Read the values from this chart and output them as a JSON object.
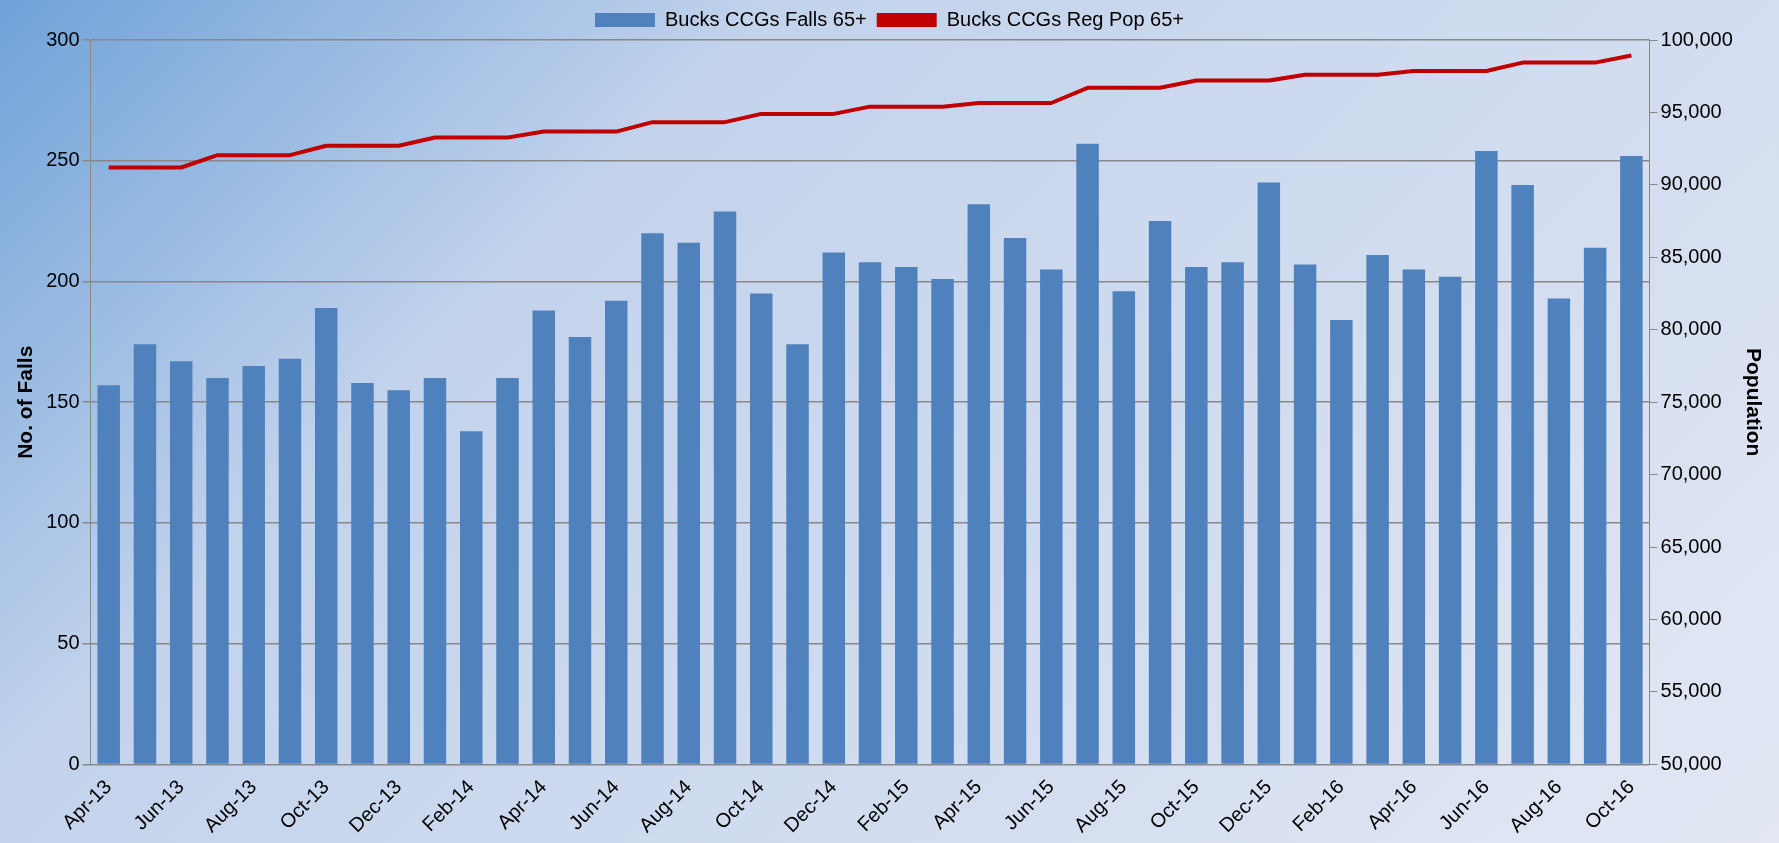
{
  "chart_data": {
    "type": "bar",
    "xlabel": null,
    "ylabel": "No. of Falls",
    "y2label": "Population",
    "categories": [
      "Apr-13",
      null,
      "Jun-13",
      null,
      "Aug-13",
      null,
      "Oct-13",
      null,
      "Dec-13",
      null,
      "Feb-14",
      null,
      "Apr-14",
      null,
      "Jun-14",
      null,
      "Aug-14",
      null,
      "Oct-14",
      null,
      "Dec-14",
      null,
      "Feb-15",
      null,
      "Apr-15",
      null,
      "Jun-15",
      null,
      "Aug-15",
      null,
      "Oct-15",
      null,
      "Dec-15",
      null,
      "Feb-16",
      null,
      "Apr-16",
      null,
      "Jun-16",
      null,
      "Aug-16",
      null,
      "Oct-16"
    ],
    "series": [
      {
        "name": "Bucks CCGs Falls 65+",
        "color": "#4f81bd",
        "values": [
          157,
          174,
          167,
          160,
          165,
          168,
          189,
          158,
          155,
          160,
          138,
          160,
          188,
          177,
          192,
          220,
          216,
          229,
          195,
          174,
          212,
          208,
          206,
          201,
          232,
          218,
          205,
          257,
          196,
          225,
          206,
          208,
          241,
          207,
          184,
          211,
          205,
          202,
          254,
          240,
          193,
          214,
          252
        ]
      },
      {
        "name": "Bucks CCGs Reg Pop 65+",
        "type": "line",
        "axis": "y2",
        "color": "#c00000",
        "values": [
          91200,
          91200,
          91200,
          92050,
          92050,
          92050,
          92700,
          92700,
          92700,
          93270,
          93270,
          93270,
          93680,
          93680,
          93680,
          94330,
          94330,
          94330,
          94900,
          94900,
          94900,
          95400,
          95400,
          95400,
          95650,
          95650,
          95650,
          96700,
          96700,
          96700,
          97200,
          97200,
          97200,
          97600,
          97600,
          97600,
          97860,
          97860,
          97860,
          98440,
          98440,
          98440,
          98930
        ]
      }
    ],
    "ylim": [
      0,
      300
    ],
    "yticks": [
      0,
      50,
      100,
      150,
      200,
      250,
      300
    ],
    "y2lim": [
      50000,
      100000
    ],
    "y2ticks": [
      {
        "value": 50000,
        "label": "50,000"
      },
      {
        "value": 55000,
        "label": "55,000"
      },
      {
        "value": 60000,
        "label": "60,000"
      },
      {
        "value": 65000,
        "label": "65,000"
      },
      {
        "value": 70000,
        "label": "70,000"
      },
      {
        "value": 75000,
        "label": "75,000"
      },
      {
        "value": 80000,
        "label": "80,000"
      },
      {
        "value": 85000,
        "label": "85,000"
      },
      {
        "value": 90000,
        "label": "90,000"
      },
      {
        "value": 95000,
        "label": "95,000"
      },
      {
        "value": 100000,
        "label": "100,000"
      }
    ],
    "grid": "y",
    "legend": "top",
    "marker": "none",
    "line_style": "solid"
  }
}
